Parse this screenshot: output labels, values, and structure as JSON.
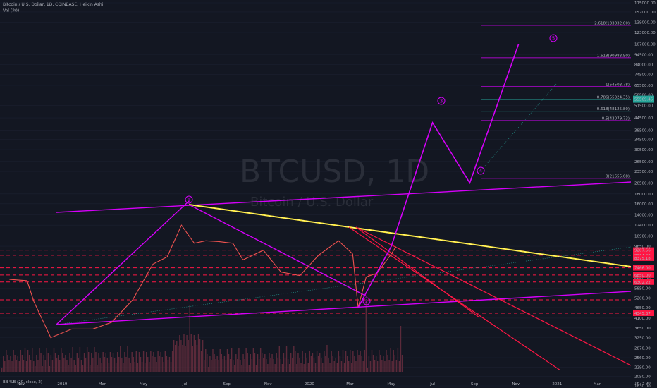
{
  "header": {
    "title": "Bitcoin / U.S. Dollar, 1D, COINBASE, Heikin Ashi",
    "volume_label": "Vol (20)"
  },
  "watermark": {
    "symbol": "BTCUSD, 1D",
    "name": "Bitcoin / U.S. Dollar"
  },
  "indicator_label": "BB %B (20, close, 2)",
  "colors": {
    "background": "#131722",
    "text": "#b2b5be",
    "magenta": "#d500f9",
    "red": "#ff1744",
    "yellow": "#ffeb3b",
    "green": "#26a69a",
    "volume": "#5b2a3a"
  },
  "chart_data": {
    "type": "line",
    "title": "Bitcoin / U.S. Dollar, 1D, COINBASE, Heikin Ashi",
    "y_scale": "log",
    "y_ticks": [
      "175000.00",
      "157000.00",
      "139000.00",
      "123000.00",
      "107000.00",
      "94500.00",
      "84000.00",
      "74500.00",
      "65500.00",
      "58500.00",
      "51500.00",
      "44500.00",
      "38500.00",
      "34500.00",
      "30500.00",
      "26500.00",
      "23500.00",
      "20500.00",
      "18000.00",
      "16000.00",
      "14000.00",
      "12400.00",
      "10900.00",
      "9650.00",
      "8450.00",
      "7450.00",
      "6550.00",
      "5850.00",
      "5200.00",
      "4650.00",
      "4100.00",
      "3650.00",
      "3250.00",
      "2870.00",
      "2560.00",
      "2290.00",
      "2050.00",
      "1830.00"
    ],
    "x_ticks": [
      "Nov",
      "2019",
      "Mar",
      "May",
      "Jul",
      "Sep",
      "Nov",
      "2020",
      "Mar",
      "May",
      "Jul",
      "Sep",
      "Nov",
      "2021",
      "Mar"
    ],
    "price_series": {
      "name": "BTCUSD",
      "x": [
        "2018-10-15",
        "2018-11-10",
        "2018-11-20",
        "2018-12-15",
        "2019-01-15",
        "2019-02-15",
        "2019-03-15",
        "2019-04-15",
        "2019-05-15",
        "2019-06-05",
        "2019-06-26",
        "2019-07-15",
        "2019-08-01",
        "2019-08-20",
        "2019-09-10",
        "2019-09-25",
        "2019-10-25",
        "2019-11-20",
        "2019-12-18",
        "2020-01-15",
        "2020-02-13",
        "2020-03-05",
        "2020-03-13",
        "2020-03-25",
        "2020-04-10",
        "2020-04-30",
        "2020-05-08"
      ],
      "y": [
        6500,
        6400,
        5000,
        3250,
        3600,
        3600,
        3900,
        5100,
        7800,
        8500,
        12400,
        10000,
        10300,
        10200,
        10000,
        8200,
        9200,
        7100,
        6800,
        8700,
        10300,
        8800,
        4650,
        6700,
        7000,
        8700,
        9600
      ]
    },
    "projections": {
      "wave_path": {
        "x": [
          "2020-03-13",
          "2020-05-01",
          "2020-07-01",
          "2020-08-25",
          "2020-11-05"
        ],
        "y": [
          4650,
          9650,
          42000,
          20500,
          107000
        ]
      },
      "wave_labels": [
        "1",
        "2",
        "3",
        "4",
        "5"
      ]
    },
    "fib_levels": [
      {
        "label": "2.618(133832.00)",
        "value": 133832
      },
      {
        "label": "1.618(90983.90)",
        "value": 90983.9
      },
      {
        "label": "1(64503.78)",
        "value": 64503.78
      },
      {
        "label": "0.786(55324.35)",
        "value": 55324.35
      },
      {
        "label": "0.618(48125.80)",
        "value": 48125.8
      },
      {
        "label": "0.5(43079.73)",
        "value": 43079.73
      },
      {
        "label": "0(21655.68)",
        "value": 21655.68
      }
    ],
    "current_price": "55569.45",
    "price_labels": [
      "9207.56",
      "8664.03",
      "8375.18",
      "7466.00",
      "6850.00",
      "6302.22",
      "4345.37"
    ],
    "horizontal_lines": [
      9207.56,
      8664.03,
      7466,
      6850,
      6302.22,
      5100,
      4345.37
    ],
    "bottom_price_label": "1623.90"
  }
}
